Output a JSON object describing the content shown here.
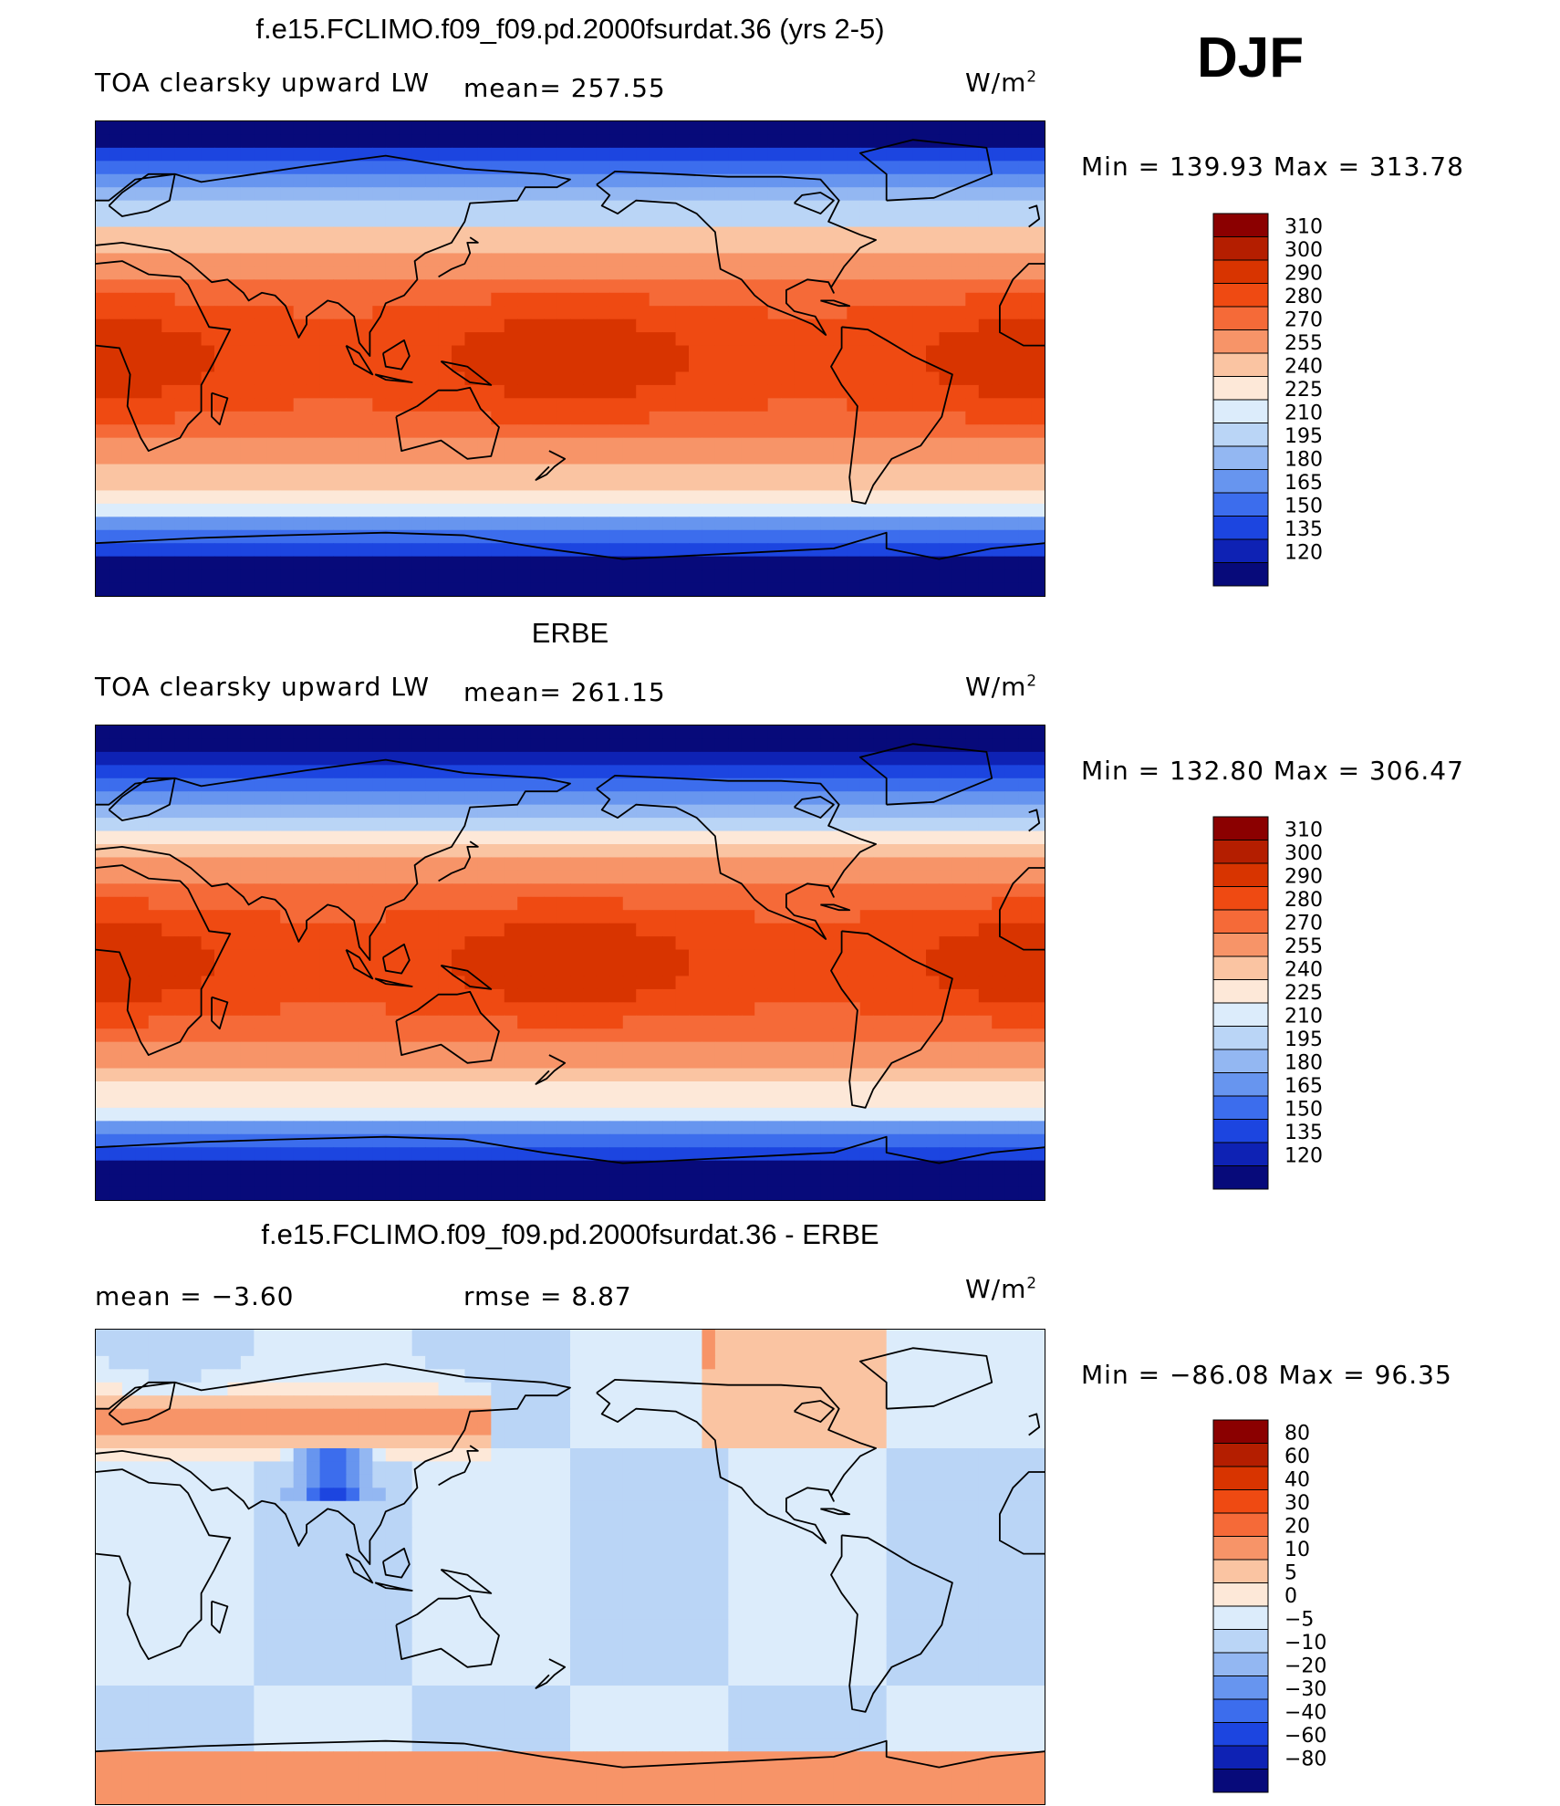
{
  "season": "DJF",
  "panels": [
    {
      "title": "f.e15.FCLIMO.f09_f09.pd.2000fsurdat.36 (yrs 2-5)",
      "left_label": "TOA clearsky upward LW",
      "center_label": "mean= 257.55",
      "units_base": "W/m",
      "units_exp": "2",
      "minmax": "Min  =  139.93  Max  =  313.78",
      "kind": "abs",
      "colorbar": {
        "labels": [
          "310",
          "300",
          "290",
          "280",
          "270",
          "255",
          "240",
          "225",
          "210",
          "195",
          "180",
          "165",
          "150",
          "135",
          "120"
        ],
        "colors": [
          "#8b0000",
          "#b41e00",
          "#d83400",
          "#ef4a12",
          "#f56a38",
          "#f79468",
          "#fac4a2",
          "#fde8d8",
          "#dcecfb",
          "#bad5f6",
          "#93b7f2",
          "#6795ef",
          "#3c6ded",
          "#1c45e0",
          "#0e22b4",
          "#070a7a"
        ]
      }
    },
    {
      "title": "ERBE",
      "left_label": "TOA clearsky upward LW",
      "center_label": "mean= 261.15",
      "units_base": "W/m",
      "units_exp": "2",
      "minmax": "Min  =  132.80  Max  =  306.47",
      "kind": "obs",
      "colorbar": {
        "labels": [
          "310",
          "300",
          "290",
          "280",
          "270",
          "255",
          "240",
          "225",
          "210",
          "195",
          "180",
          "165",
          "150",
          "135",
          "120"
        ],
        "colors": [
          "#8b0000",
          "#b41e00",
          "#d83400",
          "#ef4a12",
          "#f56a38",
          "#f79468",
          "#fac4a2",
          "#fde8d8",
          "#dcecfb",
          "#bad5f6",
          "#93b7f2",
          "#6795ef",
          "#3c6ded",
          "#1c45e0",
          "#0e22b4",
          "#070a7a"
        ]
      }
    },
    {
      "title": "f.e15.FCLIMO.f09_f09.pd.2000fsurdat.36 - ERBE",
      "left_label": "mean  =    −3.60",
      "center_label": "rmse  =      8.87",
      "units_base": "W/m",
      "units_exp": "2",
      "minmax": "Min  =  −86.08  Max  =    96.35",
      "kind": "diff",
      "colorbar": {
        "labels": [
          "80",
          "60",
          "40",
          "30",
          "20",
          "10",
          "5",
          "0",
          "−5",
          "−10",
          "−20",
          "−30",
          "−40",
          "−60",
          "−80"
        ],
        "colors": [
          "#8b0000",
          "#b41e00",
          "#d83400",
          "#ef4a12",
          "#f56a38",
          "#f79468",
          "#fac4a2",
          "#fde8d8",
          "#dcecfb",
          "#bad5f6",
          "#93b7f2",
          "#6795ef",
          "#3c6ded",
          "#1c45e0",
          "#0e22b4",
          "#070a7a"
        ]
      }
    }
  ]
}
